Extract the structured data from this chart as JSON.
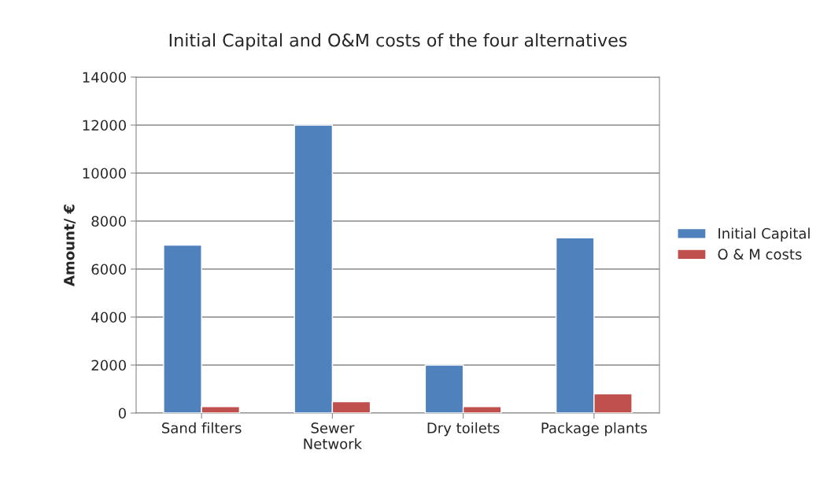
{
  "chart_data": {
    "type": "bar",
    "title": "Initial Capital and O&M costs of the four alternatives",
    "ylabel": "Amount/ €",
    "categories": [
      "Sand filters",
      "Sewer\nNetwork",
      "Dry toilets",
      "Package plants"
    ],
    "series": [
      {
        "name": "Initial Capital",
        "color": "#4f81bd",
        "values": [
          7000,
          12000,
          2000,
          7300
        ]
      },
      {
        "name": "O & M costs",
        "color": "#c0504d",
        "values": [
          270,
          470,
          270,
          800
        ]
      }
    ],
    "ylim": [
      0,
      14000
    ],
    "yticks": [
      0,
      2000,
      4000,
      6000,
      8000,
      10000,
      12000,
      14000
    ],
    "grid": "y",
    "legend": "right"
  }
}
